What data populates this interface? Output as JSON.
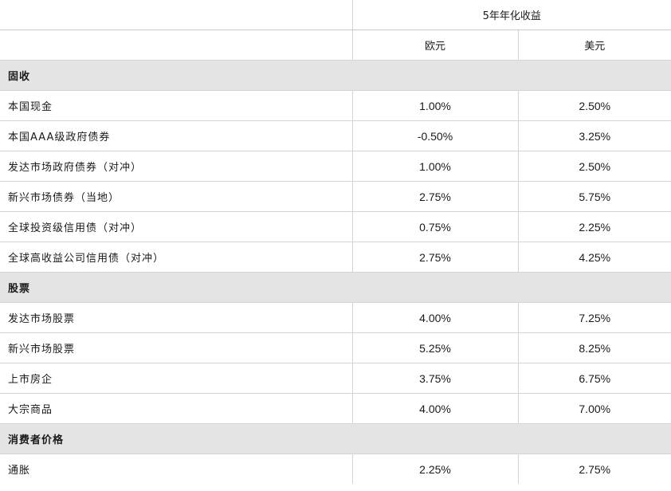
{
  "table": {
    "header_group": "5年年化收益",
    "columns": [
      "欧元",
      "美元"
    ],
    "sections": [
      {
        "title": "固收",
        "rows": [
          {
            "label": "本国现金",
            "eur": "1.00%",
            "usd": "2.50%"
          },
          {
            "label": "本国AAA级政府债券",
            "eur": "-0.50%",
            "usd": "3.25%"
          },
          {
            "label": "发达市场政府债券（对冲）",
            "eur": "1.00%",
            "usd": "2.50%"
          },
          {
            "label": "新兴市场债券（当地）",
            "eur": "2.75%",
            "usd": "5.75%"
          },
          {
            "label": "全球投资级信用债（对冲）",
            "eur": "0.75%",
            "usd": "2.25%"
          },
          {
            "label": "全球高收益公司信用债（对冲）",
            "eur": "2.75%",
            "usd": "4.25%"
          }
        ]
      },
      {
        "title": "股票",
        "rows": [
          {
            "label": "发达市场股票",
            "eur": "4.00%",
            "usd": "7.25%"
          },
          {
            "label": "新兴市场股票",
            "eur": "5.25%",
            "usd": "8.25%"
          },
          {
            "label": "上市房企",
            "eur": "3.75%",
            "usd": "6.75%"
          },
          {
            "label": "大宗商品",
            "eur": "4.00%",
            "usd": "7.00%"
          }
        ]
      },
      {
        "title": "消费者价格",
        "rows": [
          {
            "label": "通胀",
            "eur": "2.25%",
            "usd": "2.75%"
          }
        ]
      }
    ]
  }
}
